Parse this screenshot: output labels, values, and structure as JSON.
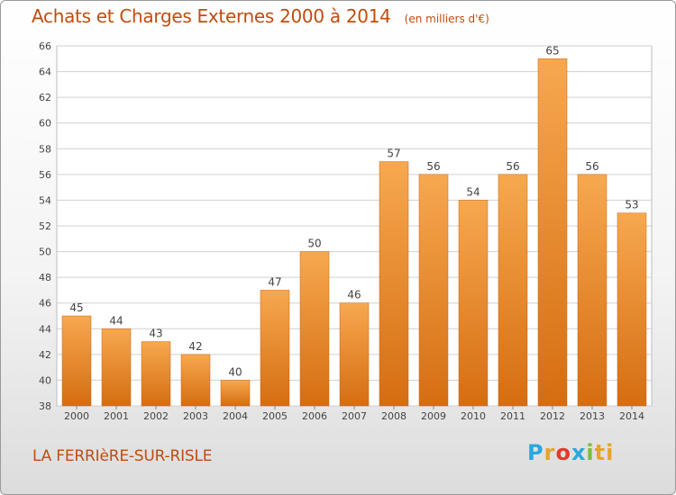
{
  "header": {
    "title": "Achats et Charges Externes 2000 à 2014",
    "subtitle": "(en milliers d'€)"
  },
  "footer": {
    "commune": "LA FERRIèRE-SUR-RISLE",
    "logo_letters": [
      "P",
      "r",
      "o",
      "x",
      "i",
      "ti"
    ]
  },
  "colors": {
    "bar_light": "#f7a84f",
    "bar_dark": "#d56d12",
    "title": "#c14c0e",
    "grid": "#d0d0d0"
  },
  "chart_data": {
    "type": "bar",
    "title": "Achats et Charges Externes 2000 à 2014",
    "categories": [
      "2000",
      "2001",
      "2002",
      "2003",
      "2004",
      "2005",
      "2006",
      "2007",
      "2008",
      "2009",
      "2010",
      "2011",
      "2012",
      "2013",
      "2014"
    ],
    "values": [
      45,
      44,
      43,
      42,
      40,
      47,
      50,
      46,
      57,
      56,
      54,
      56,
      65,
      56,
      53
    ],
    "ylim": [
      38,
      66
    ],
    "yticks": [
      38,
      40,
      42,
      44,
      46,
      48,
      50,
      52,
      54,
      56,
      58,
      60,
      62,
      64,
      66
    ],
    "grid": true
  }
}
